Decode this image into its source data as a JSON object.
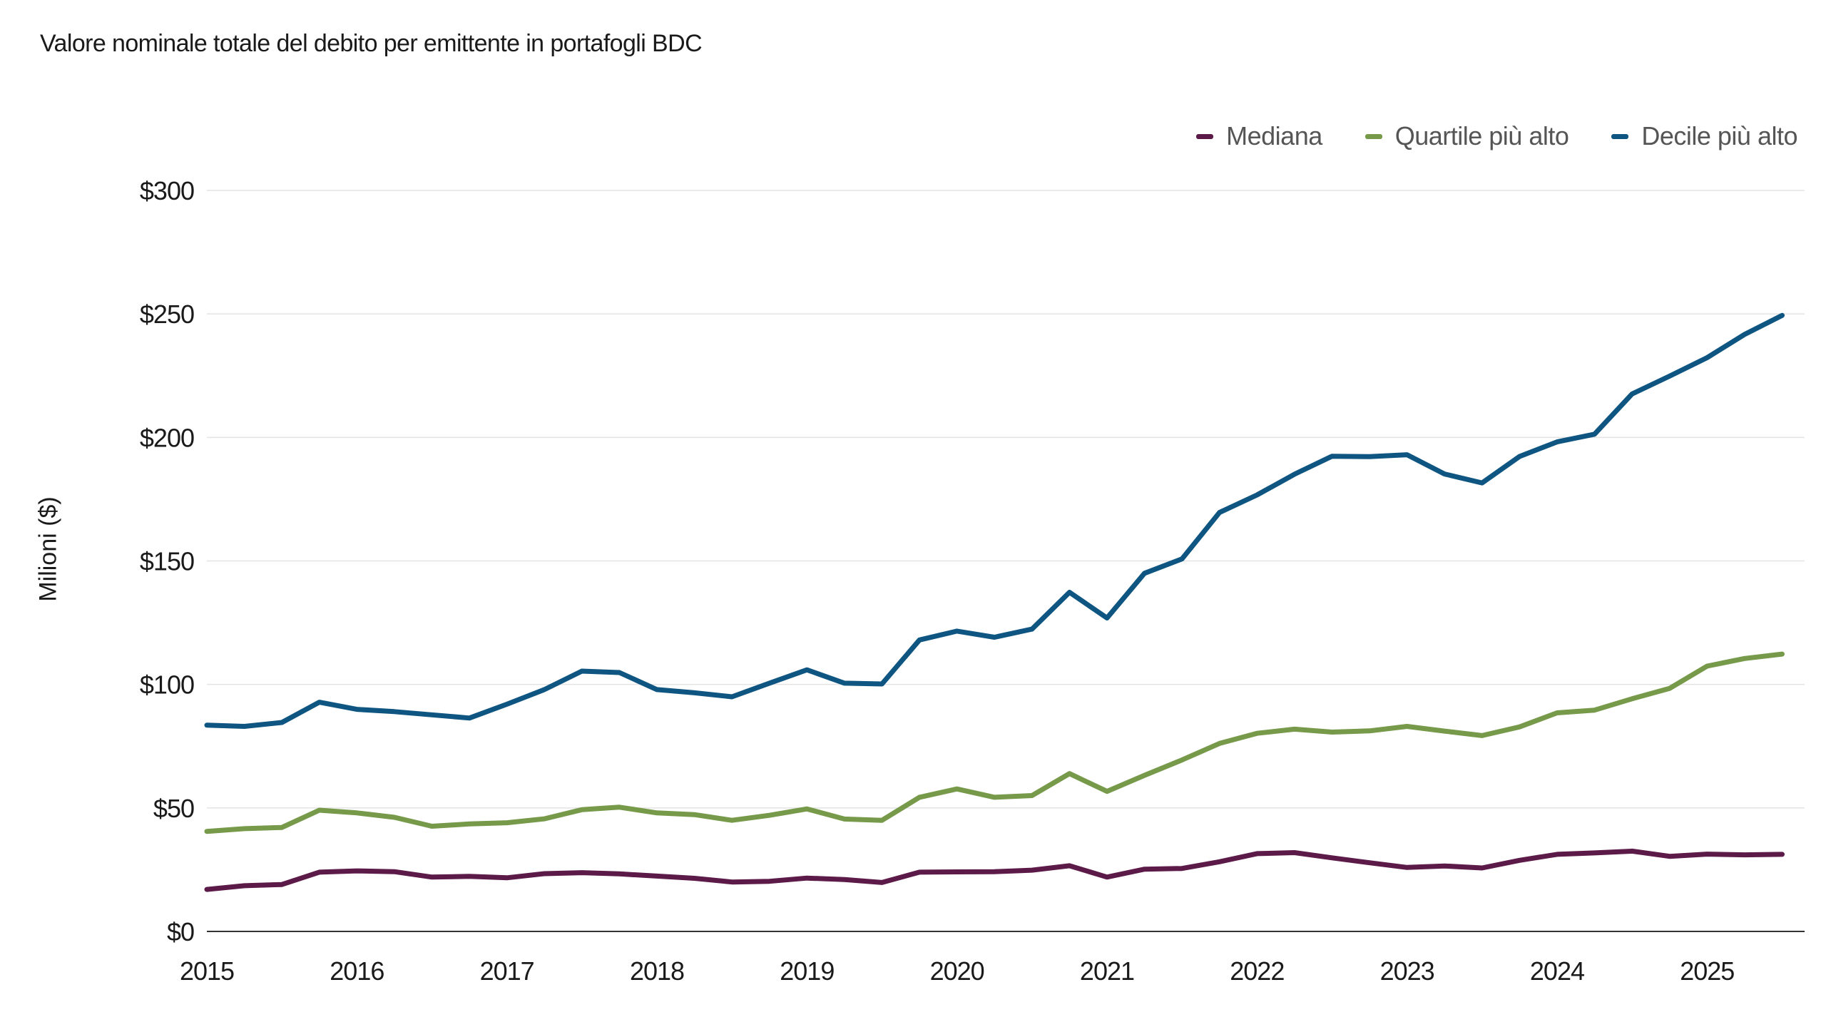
{
  "chart_data": {
    "type": "line",
    "title": "Valore nominale totale del debito per emittente in portafogli BDC",
    "xlabel": "",
    "ylabel": "Milioni ($)",
    "ylim": [
      0,
      300
    ],
    "y_ticks": [
      {
        "value": 0,
        "label": "$0"
      },
      {
        "value": 50,
        "label": "$50"
      },
      {
        "value": 100,
        "label": "$100"
      },
      {
        "value": 150,
        "label": "$150"
      },
      {
        "value": 200,
        "label": "$200"
      },
      {
        "value": 250,
        "label": "$250"
      },
      {
        "value": 300,
        "label": "$300"
      }
    ],
    "x_ticks": [
      "2015",
      "2016",
      "2017",
      "2018",
      "2019",
      "2020",
      "2021",
      "2022",
      "2023",
      "2024",
      "2025"
    ],
    "x_start": 2015.0,
    "x_step": 0.25,
    "x_end": 2025.65,
    "legend_position": "top-right",
    "grid": true,
    "series": [
      {
        "name": "Mediana",
        "color": "#5c1a48",
        "values": [
          17,
          18.5,
          19,
          24,
          24.5,
          24.2,
          22,
          22.3,
          21.7,
          23.4,
          23.8,
          23.3,
          22.4,
          21.5,
          20,
          20.3,
          21.6,
          21,
          19.8,
          24,
          24.1,
          24.2,
          24.8,
          26.6,
          22,
          25.2,
          25.5,
          28.2,
          31.5,
          31.9,
          29.8,
          27.8,
          25.9,
          26.5,
          25.7,
          28.8,
          31.2,
          31.8,
          32.5,
          30.4,
          31.3,
          31,
          31.2
        ]
      },
      {
        "name": "Quartile più alto",
        "color": "#76994a",
        "values": [
          40.5,
          41.6,
          42.1,
          49.1,
          48,
          46.2,
          42.6,
          43.5,
          44,
          45.6,
          49.3,
          50.3,
          48,
          47.3,
          45,
          47,
          49.6,
          45.5,
          45,
          54.3,
          57.7,
          54.3,
          55,
          63.9,
          56.7,
          63.2,
          69.4,
          76.1,
          80.2,
          81.9,
          80.7,
          81.2,
          83,
          81.1,
          79.3,
          82.8,
          88.5,
          89.6,
          94.2,
          98.4,
          107.4,
          110.5,
          112.3
        ]
      },
      {
        "name": "Decile più alto",
        "color": "#0f5582",
        "values": [
          83.5,
          83,
          84.6,
          92.8,
          89.9,
          89,
          87.7,
          86.4,
          92,
          97.9,
          105.4,
          104.8,
          97.9,
          96.6,
          95,
          100.5,
          105.9,
          100.5,
          100.2,
          118,
          121.6,
          119.1,
          122.4,
          137.3,
          126.9,
          145,
          150.8,
          169.6,
          176.7,
          185.1,
          192.4,
          192.2,
          193,
          185.2,
          181.6,
          192.3,
          198.2,
          201.3,
          217.6,
          224.8,
          232.3,
          241.7,
          249.4
        ]
      }
    ]
  }
}
